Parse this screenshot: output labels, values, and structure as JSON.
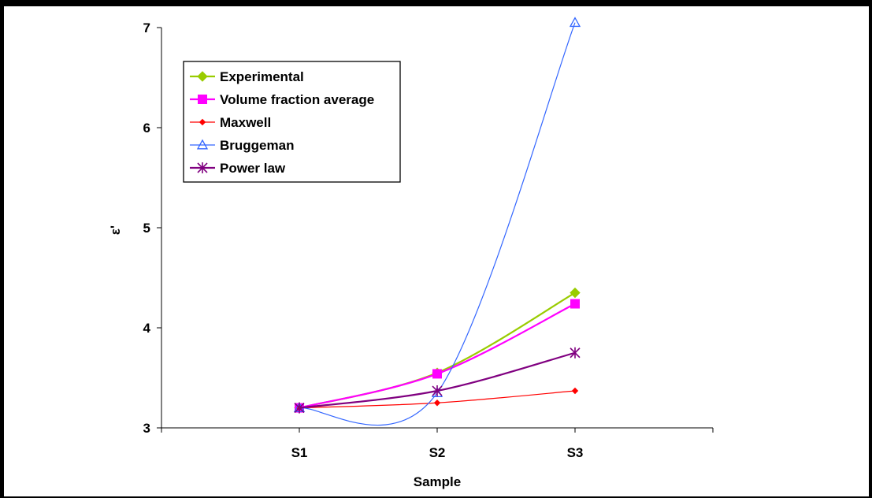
{
  "chart_data": {
    "type": "line",
    "title": "",
    "xlabel": "Sample",
    "ylabel": "ε'",
    "categories": [
      "S1",
      "S2",
      "S3"
    ],
    "ylim": [
      3,
      7
    ],
    "yticks": [
      3,
      4,
      5,
      6,
      7
    ],
    "grid": false,
    "legend_position": "top-left",
    "series": [
      {
        "name": "Experimental",
        "values": [
          3.2,
          3.55,
          4.35
        ],
        "color": "#99CC00",
        "marker": "diamond",
        "smooth": true
      },
      {
        "name": "Volume fraction average",
        "values": [
          3.2,
          3.54,
          4.24
        ],
        "color": "#FF00FF",
        "marker": "square",
        "smooth": true
      },
      {
        "name": "Maxwell",
        "values": [
          3.2,
          3.25,
          3.37
        ],
        "color": "#FF0000",
        "marker": "small-diamond",
        "smooth": true
      },
      {
        "name": "Bruggeman",
        "values": [
          3.2,
          3.35,
          7.05
        ],
        "color": "#3366FF",
        "marker": "triangle",
        "smooth": true
      },
      {
        "name": "Power law",
        "values": [
          3.2,
          3.37,
          3.75
        ],
        "color": "#800080",
        "marker": "star",
        "smooth": true
      }
    ]
  }
}
